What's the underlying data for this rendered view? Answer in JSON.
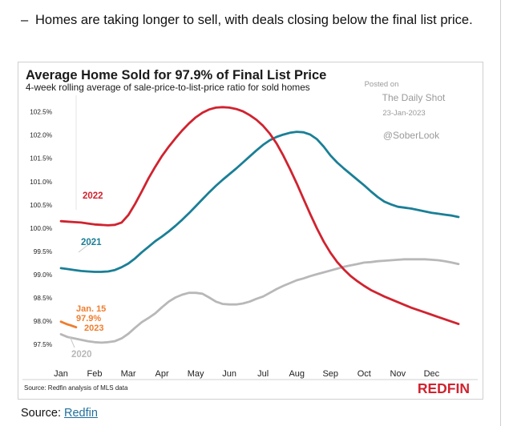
{
  "header": {
    "dash": "–",
    "bullet_text": "Homes are taking longer to sell, with deals closing below the final list price."
  },
  "footer": {
    "source_label": "Source:",
    "source_link": "Redfin"
  },
  "chart": {
    "note": "Source: Redfin analysis of MLS data",
    "brand": "REDFIN",
    "watermark": {
      "posted_on": "Posted on",
      "site": "The Daily Shot",
      "date": "23-Jan-2023",
      "handle": "@SoberLook"
    },
    "annotation": {
      "line1": "Jan. 15",
      "line2": "97.9%"
    }
  },
  "colors": {
    "2022": "#d0232f",
    "2021": "#1a7f96",
    "2020": "#b8b8b8",
    "2023": "#ef7d2d",
    "brand": "#d0232f",
    "text": "#111111",
    "link": "#1f6f9c"
  },
  "chart_data": {
    "type": "line",
    "title": "Average Home Sold for 97.9% of Final List Price",
    "subtitle": "4-week rolling average of sale-price-to-list-price ratio for sold homes",
    "xlabel": "",
    "ylabel": "",
    "categories": [
      "Jan",
      "Feb",
      "Mar",
      "Apr",
      "May",
      "Jun",
      "Jul",
      "Aug",
      "Sep",
      "Oct",
      "Nov",
      "Dec"
    ],
    "y_ticks": [
      "97.5%",
      "98.0%",
      "98.5%",
      "99.0%",
      "99.5%",
      "100.0%",
      "100.5%",
      "101.0%",
      "101.5%",
      "102.0%",
      "102.5%"
    ],
    "ylim": [
      97.4,
      102.7
    ],
    "xlim": [
      0,
      11.8
    ],
    "grid": false,
    "legend": "inline labels",
    "series": [
      {
        "name": "2022",
        "x": [
          0,
          0.2,
          0.4,
          0.6,
          0.8,
          1.0,
          1.2,
          1.4,
          1.6,
          1.8,
          2.0,
          2.2,
          2.4,
          2.6,
          2.8,
          3.0,
          3.2,
          3.4,
          3.6,
          3.8,
          4.0,
          4.2,
          4.4,
          4.6,
          4.8,
          5.0,
          5.2,
          5.4,
          5.6,
          5.8,
          6.0,
          6.2,
          6.4,
          6.6,
          6.8,
          7.0,
          7.2,
          7.4,
          7.6,
          7.8,
          8.0,
          8.2,
          8.4,
          8.6,
          8.8,
          9.0,
          9.2,
          9.4,
          9.6,
          9.8,
          10.0,
          10.2,
          10.4,
          10.6,
          10.8,
          11.0,
          11.2,
          11.4,
          11.6,
          11.8
        ],
        "values": [
          100.15,
          100.14,
          100.13,
          100.12,
          100.1,
          100.08,
          100.07,
          100.06,
          100.07,
          100.12,
          100.28,
          100.52,
          100.79,
          101.07,
          101.32,
          101.55,
          101.75,
          101.93,
          102.1,
          102.25,
          102.38,
          102.48,
          102.55,
          102.59,
          102.6,
          102.59,
          102.56,
          102.51,
          102.43,
          102.33,
          102.2,
          102.03,
          101.82,
          101.56,
          101.27,
          100.96,
          100.63,
          100.3,
          99.99,
          99.71,
          99.47,
          99.27,
          99.11,
          98.97,
          98.86,
          98.76,
          98.67,
          98.6,
          98.53,
          98.47,
          98.41,
          98.35,
          98.29,
          98.24,
          98.19,
          98.14,
          98.09,
          98.04,
          97.99,
          97.94
        ]
      },
      {
        "name": "2021",
        "x": [
          0,
          0.2,
          0.4,
          0.6,
          0.8,
          1.0,
          1.2,
          1.4,
          1.6,
          1.8,
          2.0,
          2.2,
          2.4,
          2.6,
          2.8,
          3.0,
          3.2,
          3.4,
          3.6,
          3.8,
          4.0,
          4.2,
          4.4,
          4.6,
          4.8,
          5.0,
          5.2,
          5.4,
          5.6,
          5.8,
          6.0,
          6.2,
          6.4,
          6.6,
          6.8,
          7.0,
          7.2,
          7.4,
          7.6,
          7.8,
          8.0,
          8.2,
          8.4,
          8.6,
          8.8,
          9.0,
          9.2,
          9.4,
          9.6,
          9.8,
          10.0,
          10.2,
          10.4,
          10.6,
          10.8,
          11.0,
          11.2,
          11.4,
          11.6,
          11.8
        ],
        "values": [
          99.14,
          99.12,
          99.1,
          99.08,
          99.07,
          99.06,
          99.06,
          99.07,
          99.1,
          99.16,
          99.24,
          99.35,
          99.48,
          99.6,
          99.72,
          99.82,
          99.93,
          100.05,
          100.18,
          100.32,
          100.47,
          100.62,
          100.77,
          100.91,
          101.04,
          101.16,
          101.28,
          101.41,
          101.54,
          101.67,
          101.79,
          101.89,
          101.96,
          102.01,
          102.05,
          102.07,
          102.06,
          102.01,
          101.91,
          101.75,
          101.56,
          101.41,
          101.28,
          101.16,
          101.04,
          100.92,
          100.79,
          100.67,
          100.57,
          100.51,
          100.46,
          100.44,
          100.42,
          100.39,
          100.36,
          100.33,
          100.31,
          100.29,
          100.27,
          100.24
        ]
      },
      {
        "name": "2020",
        "x": [
          0,
          0.2,
          0.4,
          0.6,
          0.8,
          1.0,
          1.2,
          1.4,
          1.6,
          1.8,
          2.0,
          2.2,
          2.4,
          2.6,
          2.8,
          3.0,
          3.2,
          3.4,
          3.6,
          3.8,
          4.0,
          4.2,
          4.4,
          4.6,
          4.8,
          5.0,
          5.2,
          5.4,
          5.6,
          5.8,
          6.0,
          6.2,
          6.4,
          6.6,
          6.8,
          7.0,
          7.2,
          7.4,
          7.6,
          7.8,
          8.0,
          8.2,
          8.4,
          8.6,
          8.8,
          9.0,
          9.2,
          9.4,
          9.6,
          9.8,
          10.0,
          10.2,
          10.4,
          10.6,
          10.8,
          11.0,
          11.2,
          11.4,
          11.6,
          11.8
        ],
        "values": [
          97.72,
          97.66,
          97.63,
          97.6,
          97.57,
          97.55,
          97.54,
          97.55,
          97.57,
          97.63,
          97.73,
          97.86,
          97.98,
          98.07,
          98.17,
          98.3,
          98.42,
          98.51,
          98.57,
          98.61,
          98.61,
          98.59,
          98.51,
          98.42,
          98.37,
          98.36,
          98.36,
          98.38,
          98.42,
          98.48,
          98.53,
          98.61,
          98.69,
          98.76,
          98.82,
          98.88,
          98.92,
          98.97,
          99.01,
          99.05,
          99.09,
          99.13,
          99.17,
          99.2,
          99.23,
          99.26,
          99.27,
          99.29,
          99.3,
          99.31,
          99.32,
          99.33,
          99.33,
          99.33,
          99.33,
          99.32,
          99.31,
          99.29,
          99.26,
          99.23
        ]
      },
      {
        "name": "2023",
        "x": [
          0,
          0.1,
          0.2,
          0.3,
          0.45
        ],
        "values": [
          97.99,
          97.96,
          97.93,
          97.91,
          97.87
        ]
      }
    ],
    "labels": [
      "2022",
      "2021",
      "2020",
      "2023"
    ]
  }
}
